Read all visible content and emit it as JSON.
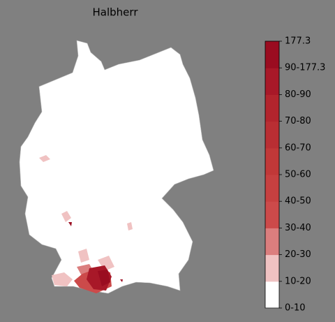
{
  "title": "Halbherr",
  "colorbar": {
    "labels": [
      "0-10",
      "10-20",
      "20-30",
      "30-40",
      "40-50",
      "50-60",
      "60-70",
      "70-80",
      "80-90",
      "90-177.3",
      "177.3"
    ],
    "colors": [
      "#ffffff",
      "#f0c2c2",
      "#db7e7e",
      "#cc4a4a",
      "#c64040",
      "#c13838",
      "#b92e33",
      "#b2242d",
      "#a81828",
      "#9a0c20"
    ]
  }
}
